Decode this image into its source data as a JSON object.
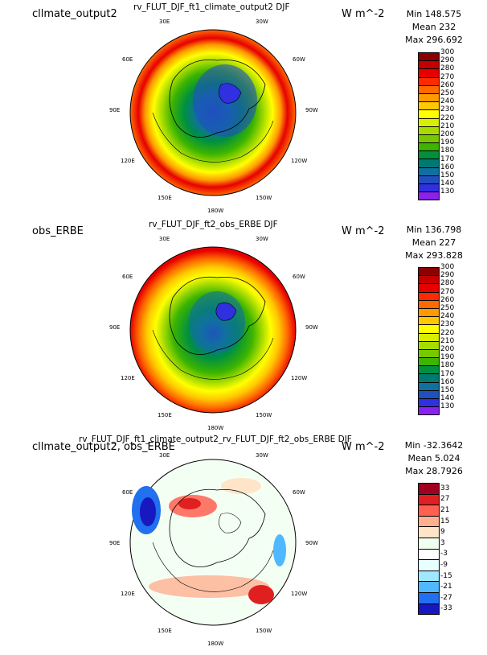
{
  "panels": [
    {
      "title": "cllmate_output2",
      "center_title": "rv_FLUT_DJF_ft1_climate_output2  DJF",
      "units": "W m^-2",
      "stats": {
        "min": "Min 148.575",
        "mean": "Mean 232",
        "max": "Max 296.692"
      },
      "colorbar": {
        "labels": [
          "300",
          "290",
          "280",
          "270",
          "260",
          "250",
          "240",
          "230",
          "220",
          "210",
          "200",
          "190",
          "180",
          "170",
          "160",
          "150",
          "140",
          "130"
        ],
        "colors": [
          "#8b0000",
          "#c40000",
          "#e60000",
          "#ff2a00",
          "#ff6a00",
          "#ff9a00",
          "#ffc800",
          "#ffff00",
          "#d8ef00",
          "#a8dc00",
          "#78c800",
          "#3cb400",
          "#009040",
          "#007a70",
          "#1070a0",
          "#2050c0",
          "#3030e0",
          "#8c20f0"
        ]
      }
    },
    {
      "title": "obs_ERBE",
      "center_title": "rv_FLUT_DJF_ft2_obs_ERBE  DJF",
      "units": "W m^-2",
      "stats": {
        "min": "Min 136.798",
        "mean": "Mean 227",
        "max": "Max 293.828"
      },
      "colorbar": {
        "labels": [
          "300",
          "290",
          "280",
          "270",
          "260",
          "250",
          "240",
          "230",
          "220",
          "210",
          "200",
          "190",
          "180",
          "170",
          "160",
          "150",
          "140",
          "130"
        ],
        "colors": [
          "#8b0000",
          "#c40000",
          "#e60000",
          "#ff2a00",
          "#ff6a00",
          "#ff9a00",
          "#ffc800",
          "#ffff00",
          "#d8ef00",
          "#a8dc00",
          "#78c800",
          "#3cb400",
          "#009040",
          "#007a70",
          "#1070a0",
          "#2050c0",
          "#3030e0",
          "#8c20f0"
        ]
      }
    },
    {
      "title": "cllmate_output2, obs_ERBE",
      "center_title": "rv_FLUT_DJF_ft1_climate_output2_rv_FLUT_DJF_ft2_obs_ERBE  DJF",
      "units": "W m^-2",
      "stats": {
        "min": "Min -32.3642",
        "mean": "Mean 5.024",
        "max": "Max 28.7926"
      },
      "colorbar": {
        "labels": [
          "33",
          "27",
          "21",
          "15",
          "9",
          "3",
          "-3",
          "-9",
          "-15",
          "-21",
          "-27",
          "-33"
        ],
        "colors": [
          "#a00020",
          "#e02020",
          "#ff6050",
          "#ffb090",
          "#ffe4c8",
          "#f0fff0",
          "#ffffff",
          "#e8ffff",
          "#a0e8ff",
          "#50b8ff",
          "#2070f0",
          "#1818c0"
        ]
      }
    }
  ],
  "longitude_labels": [
    "30E",
    "30W",
    "60E",
    "60W",
    "90E",
    "90W",
    "120E",
    "120W",
    "150E",
    "150W",
    "180W"
  ]
}
